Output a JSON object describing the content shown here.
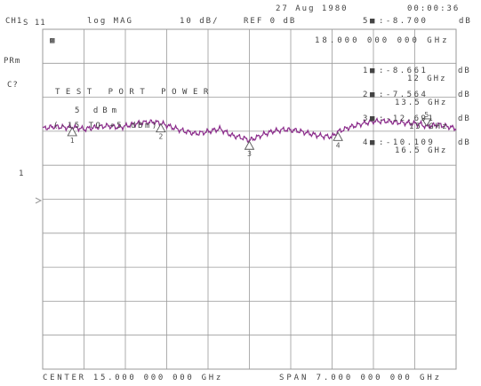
{
  "header": {
    "date": "27 Aug 1980",
    "time": "00:00:36",
    "channel": "CH1",
    "s_param": "S 11",
    "format": "log MAG",
    "scale": "10 dB/",
    "ref": "REF 0 dB",
    "active_marker": {
      "id": "5",
      "value": ":-8.700",
      "unit": "dB",
      "freq": "18.000 000 000 GHz"
    }
  },
  "softkey_indicators": {
    "prm": "PRm",
    "c": "C?",
    "ref_pos": "1"
  },
  "box_icon": "▩",
  "power_panel": {
    "title": "TEST PORT POWER",
    "value": "5 dBm",
    "range": "(-15 TO +5 dBm)"
  },
  "markers": [
    {
      "id": "1",
      "value": ":-8.661",
      "unit": "dB",
      "freq": "12 GHz"
    },
    {
      "id": "2",
      "value": ":-7.564",
      "unit": "dB",
      "freq": "13.5 GHz"
    },
    {
      "id": "3",
      "value": ":-12.691",
      "unit": "dB",
      "freq": "15 GHz"
    },
    {
      "id": "4",
      "value": ":-10.109",
      "unit": "dB",
      "freq": "16.5 GHz"
    }
  ],
  "footer": {
    "center": "CENTER 15.000 000 000 GHz",
    "span": "SPAN 7.000 000 000 GHz"
  },
  "colors": {
    "trace": "#8a2a8a",
    "grid": "#9a9a9a",
    "text": "#444444"
  },
  "chart_data": {
    "type": "line",
    "x_center_ghz": 15,
    "x_span_ghz": 7,
    "xlim": [
      11.5,
      18.5
    ],
    "ylim_db": [
      -80,
      20
    ],
    "ref_db": 0,
    "markers_ghz": [
      12,
      13.5,
      15,
      16.5,
      18
    ],
    "series": [
      {
        "x": [
          11.5,
          11.7,
          11.9,
          12.0,
          12.2,
          12.4,
          12.6,
          12.8,
          13.0,
          13.2,
          13.4,
          13.5,
          13.7,
          13.9,
          14.1,
          14.3,
          14.5,
          14.7,
          14.9,
          15.0,
          15.2,
          15.4,
          15.6,
          15.8,
          16.0,
          16.2,
          16.4,
          16.5,
          16.7,
          16.9,
          17.1,
          17.3,
          17.5,
          17.7,
          17.9,
          18.0,
          18.2,
          18.5
        ],
        "y": [
          -9.2,
          -8.6,
          -8.9,
          -8.7,
          -9.4,
          -8.8,
          -8.4,
          -8.9,
          -8.1,
          -7.4,
          -7.3,
          -7.6,
          -8.9,
          -10.0,
          -10.7,
          -10.1,
          -9.3,
          -11.2,
          -12.0,
          -12.7,
          -11.2,
          -10.0,
          -9.5,
          -9.8,
          -10.6,
          -11.4,
          -11.6,
          -10.1,
          -8.8,
          -7.8,
          -7.1,
          -7.0,
          -7.4,
          -7.6,
          -7.9,
          -8.7,
          -8.0,
          -9.2
        ]
      }
    ]
  }
}
